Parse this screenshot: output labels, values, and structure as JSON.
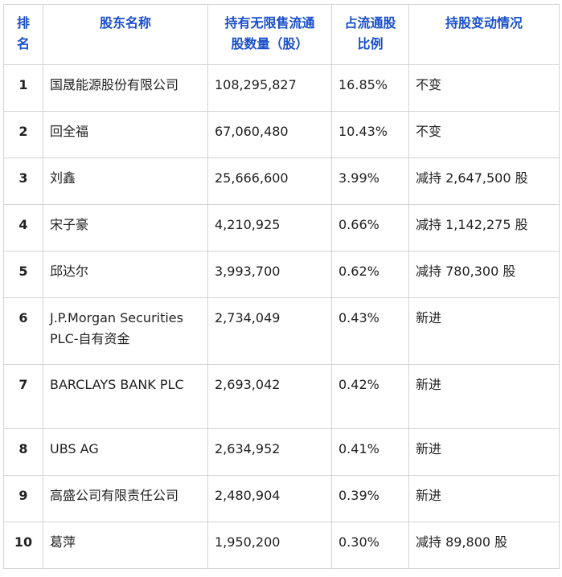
{
  "table": {
    "headers": [
      {
        "key": "rank",
        "lines": [
          "排",
          "名"
        ]
      },
      {
        "key": "name",
        "lines": [
          "股东名称"
        ]
      },
      {
        "key": "shares",
        "lines": [
          "持有无限售流通",
          "股数量（股）"
        ]
      },
      {
        "key": "ratio",
        "lines": [
          "占流通股",
          "比例"
        ]
      },
      {
        "key": "change",
        "lines": [
          "持股变动情况"
        ]
      }
    ],
    "rows": [
      {
        "rank": "1",
        "name": "国晟能源股份有限公司",
        "shares": "108,295,827",
        "ratio": "16.85%",
        "change": "不变"
      },
      {
        "rank": "2",
        "name": "回全福",
        "shares": "67,060,480",
        "ratio": "10.43%",
        "change": "不变"
      },
      {
        "rank": "3",
        "name": "刘鑫",
        "shares": "25,666,600",
        "ratio": "3.99%",
        "change": "减持 2,647,500 股"
      },
      {
        "rank": "4",
        "name": "宋子豪",
        "shares": "4,210,925",
        "ratio": "0.66%",
        "change": "减持 1,142,275 股"
      },
      {
        "rank": "5",
        "name": "邱达尔",
        "shares": "3,993,700",
        "ratio": "0.62%",
        "change": "减持 780,300 股"
      },
      {
        "rank": "6",
        "name": "J.P.Morgan Securities PLC-自有资金",
        "shares": "2,734,049",
        "ratio": "0.43%",
        "change": "新进"
      },
      {
        "rank": "7",
        "name": "BARCLAYS BANK PLC",
        "shares": "2,693,042",
        "ratio": "0.42%",
        "change": "新进"
      },
      {
        "rank": "8",
        "name": "UBS AG",
        "shares": "2,634,952",
        "ratio": "0.41%",
        "change": "新进"
      },
      {
        "rank": "9",
        "name": "高盛公司有限责任公司",
        "shares": "2,480,904",
        "ratio": "0.39%",
        "change": "新进"
      },
      {
        "rank": "10",
        "name": "葛萍",
        "shares": "1,950,200",
        "ratio": "0.30%",
        "change": "减持 89,800 股"
      }
    ]
  },
  "colors": {
    "header_text": "#1a4fcc",
    "border": "#d4d4d4",
    "body_text": "#222222"
  }
}
